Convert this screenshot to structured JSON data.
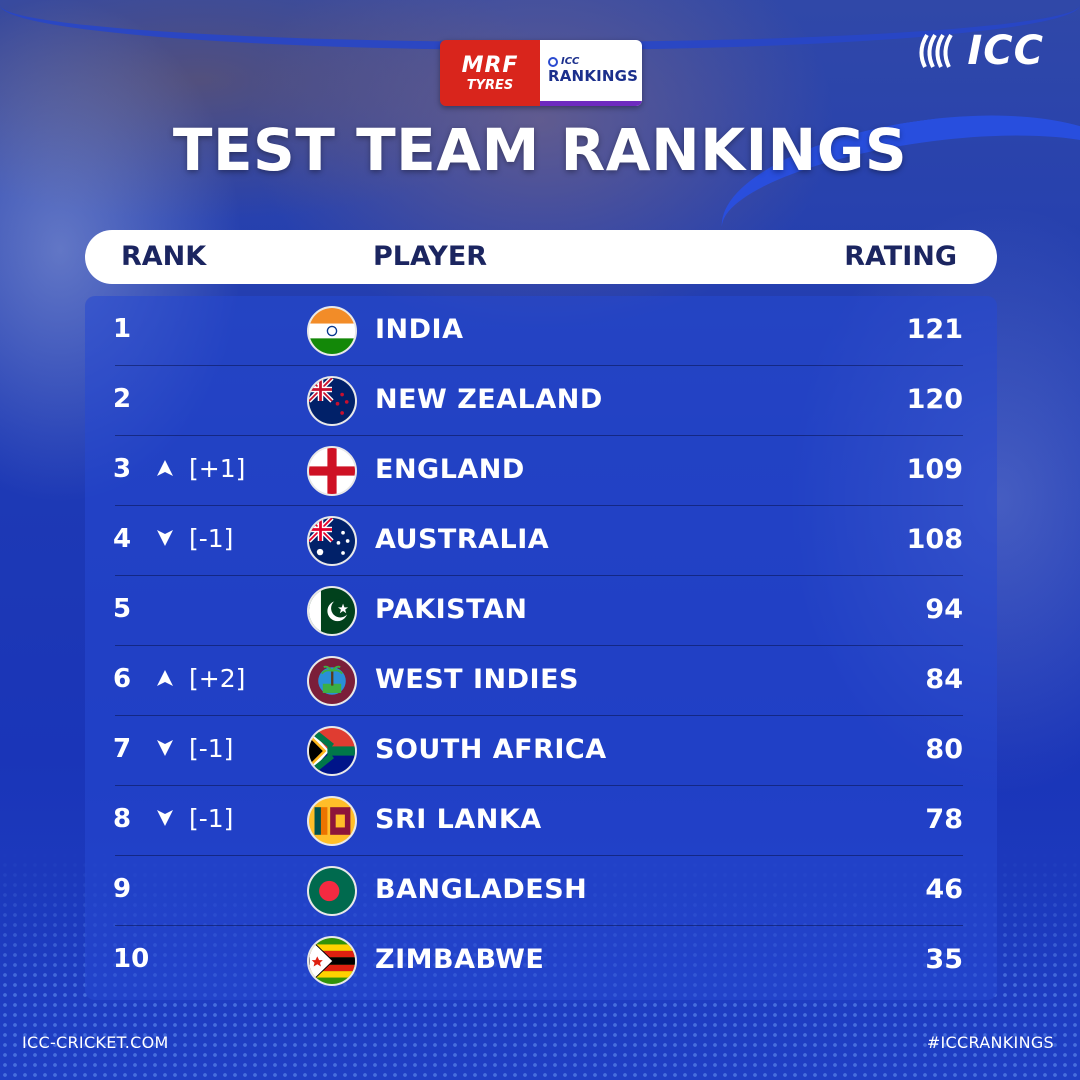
{
  "brand": {
    "icc_logo_text": "ICC",
    "sponsor_mrf_line1": "MRF",
    "sponsor_mrf_line2": "TYRES",
    "sponsor_icc_line1": "ICC",
    "sponsor_icc_line2": "RANKINGS"
  },
  "title": "TEST TEAM RANKINGS",
  "header": {
    "rank": "RANK",
    "player": "PLAYER",
    "rating": "RATING"
  },
  "rows": [
    {
      "rank": "1",
      "change": "",
      "direction": "none",
      "team": "INDIA",
      "rating": "121",
      "flag": "india-flag"
    },
    {
      "rank": "2",
      "change": "",
      "direction": "none",
      "team": "NEW ZEALAND",
      "rating": "120",
      "flag": "new-zealand-flag"
    },
    {
      "rank": "3",
      "change": "[+1]",
      "direction": "up",
      "team": "ENGLAND",
      "rating": "109",
      "flag": "england-flag"
    },
    {
      "rank": "4",
      "change": "[-1]",
      "direction": "down",
      "team": "AUSTRALIA",
      "rating": "108",
      "flag": "australia-flag"
    },
    {
      "rank": "5",
      "change": "",
      "direction": "none",
      "team": "PAKISTAN",
      "rating": "94",
      "flag": "pakistan-flag"
    },
    {
      "rank": "6",
      "change": "[+2]",
      "direction": "up",
      "team": "WEST INDIES",
      "rating": "84",
      "flag": "west-indies-flag"
    },
    {
      "rank": "7",
      "change": "[-1]",
      "direction": "down",
      "team": "SOUTH AFRICA",
      "rating": "80",
      "flag": "south-africa-flag"
    },
    {
      "rank": "8",
      "change": "[-1]",
      "direction": "down",
      "team": "SRI LANKA",
      "rating": "78",
      "flag": "sri-lanka-flag"
    },
    {
      "rank": "9",
      "change": "",
      "direction": "none",
      "team": "BANGLADESH",
      "rating": "46",
      "flag": "bangladesh-flag"
    },
    {
      "rank": "10",
      "change": "",
      "direction": "none",
      "team": "ZIMBABWE",
      "rating": "35",
      "flag": "zimbabwe-flag"
    }
  ],
  "footer": {
    "left": "ICC-CRICKET.COM",
    "right": "#ICCRANKINGS"
  },
  "colors": {
    "background": "#1e3ab4",
    "panel": "#2648d2",
    "header_text": "#1b2560",
    "mrf_red": "#d9251c",
    "rankings_purple": "#6e2bbf"
  }
}
